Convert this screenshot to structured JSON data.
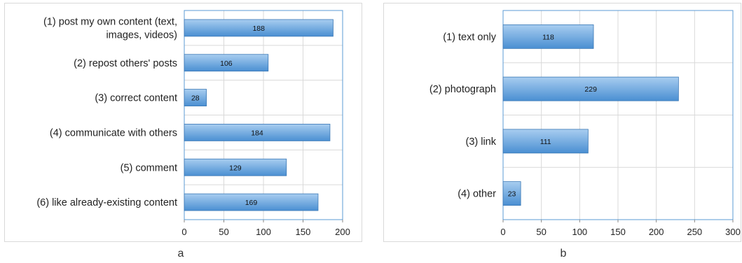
{
  "chart_data": [
    {
      "type": "bar",
      "orientation": "horizontal",
      "panel_label": "a",
      "categories": [
        "(1) post my own content (text, images, videos)",
        "(2) repost others' posts",
        "(3) correct content",
        "(4) communicate with others",
        "(5) comment",
        "(6) like already-existing content"
      ],
      "category_lines": [
        [
          "(1) post my own content (text,",
          "images, videos)"
        ],
        [
          "(2) repost others' posts"
        ],
        [
          "(3) correct content"
        ],
        [
          "(4) communicate with others"
        ],
        [
          "(5) comment"
        ],
        [
          "(6) like already-existing content"
        ]
      ],
      "values": [
        188,
        106,
        28,
        184,
        129,
        169
      ],
      "xlim": [
        0,
        200
      ],
      "xticks": [
        "0",
        "50",
        "100",
        "150",
        "200"
      ],
      "grid": true,
      "legend": "none",
      "title": "",
      "xlabel": "",
      "ylabel": ""
    },
    {
      "type": "bar",
      "orientation": "horizontal",
      "panel_label": "b",
      "categories": [
        "(1) text only",
        "(2) photograph",
        "(3) link",
        "(4) other"
      ],
      "category_lines": [
        [
          "(1) text only"
        ],
        [
          "(2) photograph"
        ],
        [
          "(3) link"
        ],
        [
          "(4) other"
        ]
      ],
      "values": [
        118,
        229,
        111,
        23
      ],
      "xlim": [
        0,
        300
      ],
      "xticks": [
        "0",
        "50",
        "100",
        "150",
        "200",
        "250",
        "300"
      ],
      "grid": true,
      "legend": "none",
      "title": "",
      "xlabel": "",
      "ylabel": ""
    }
  ],
  "colors": {
    "bar_top": "#a8cdf0",
    "bar_bottom": "#4a8fd2",
    "bar_edge": "#3b78b5",
    "grid": "#d9d9d9",
    "plot_border": "#5b9bd5"
  }
}
